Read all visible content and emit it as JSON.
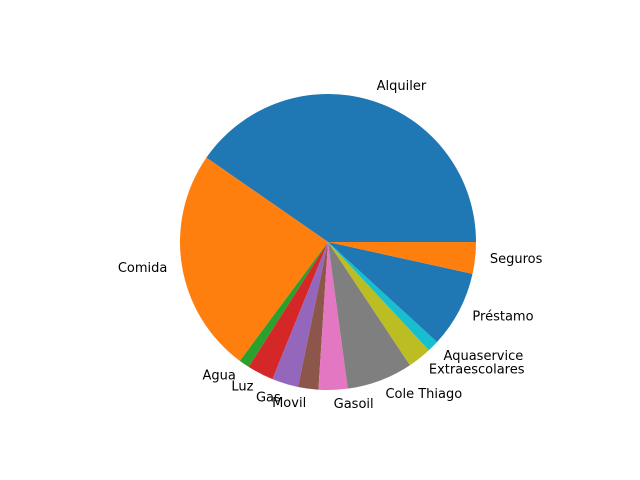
{
  "chart_data": {
    "type": "pie",
    "title": "",
    "legend": "none",
    "start_angle_deg": 0,
    "direction": "counterclockwise",
    "slices": [
      {
        "label": "Alquiler",
        "value": 42.0,
        "color": "#1f77b4"
      },
      {
        "label": "Comida",
        "value": 25.5,
        "color": "#ff7f0e"
      },
      {
        "label": "Agua",
        "value": 1.2,
        "color": "#2ca02c"
      },
      {
        "label": "Luz",
        "value": 3.0,
        "color": "#d62728"
      },
      {
        "label": "Gas",
        "value": 3.0,
        "color": "#9467bd"
      },
      {
        "label": "Movil",
        "value": 2.3,
        "color": "#8c564b"
      },
      {
        "label": "Gasoil",
        "value": 3.3,
        "color": "#e377c2"
      },
      {
        "label": "Cole Thiago",
        "value": 7.5,
        "color": "#7f7f7f"
      },
      {
        "label": "Extraescolares",
        "value": 2.7,
        "color": "#bcbd22"
      },
      {
        "label": "Aquaservice",
        "value": 1.3,
        "color": "#17becf"
      },
      {
        "label": "Préstamo",
        "value": 8.7,
        "color": "#1f77b4"
      },
      {
        "label": "Seguros",
        "value": 3.6,
        "color": "#ff7f0e"
      }
    ]
  }
}
